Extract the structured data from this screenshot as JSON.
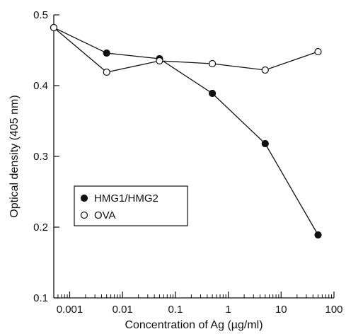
{
  "chart_data": {
    "type": "line",
    "xscale": "log",
    "xlabel": "Concentration of Ag (µg/ml)",
    "ylabel": "Optical density (405 nm)",
    "xlim": [
      0.0005,
      100
    ],
    "ylim": [
      0.1,
      0.5
    ],
    "x_ticks": [
      {
        "value": 0.001,
        "label": "0.001"
      },
      {
        "value": 0.01,
        "label": "0.01"
      },
      {
        "value": 0.1,
        "label": "0.1"
      },
      {
        "value": 1,
        "label": "1"
      },
      {
        "value": 10,
        "label": "10"
      },
      {
        "value": 100,
        "label": "100"
      }
    ],
    "y_ticks": [
      {
        "value": 0.1,
        "label": "0.1"
      },
      {
        "value": 0.2,
        "label": "0.2"
      },
      {
        "value": 0.3,
        "label": "0.3"
      },
      {
        "value": 0.4,
        "label": "0.4"
      },
      {
        "value": 0.5,
        "label": "0.5"
      }
    ],
    "grid": false,
    "legend": "bottom-left",
    "series": [
      {
        "name": "HMG1/HMG2",
        "marker": "filled-circle",
        "points": [
          {
            "x": 0.0005,
            "y": 0.482
          },
          {
            "x": 0.005,
            "y": 0.446
          },
          {
            "x": 0.05,
            "y": 0.438
          },
          {
            "x": 0.5,
            "y": 0.389
          },
          {
            "x": 5,
            "y": 0.318
          },
          {
            "x": 50,
            "y": 0.189
          }
        ]
      },
      {
        "name": "OVA",
        "marker": "open-circle",
        "points": [
          {
            "x": 0.0005,
            "y": 0.482
          },
          {
            "x": 0.005,
            "y": 0.419
          },
          {
            "x": 0.05,
            "y": 0.435
          },
          {
            "x": 0.5,
            "y": 0.431
          },
          {
            "x": 5,
            "y": 0.422
          },
          {
            "x": 50,
            "y": 0.448
          }
        ]
      }
    ]
  }
}
